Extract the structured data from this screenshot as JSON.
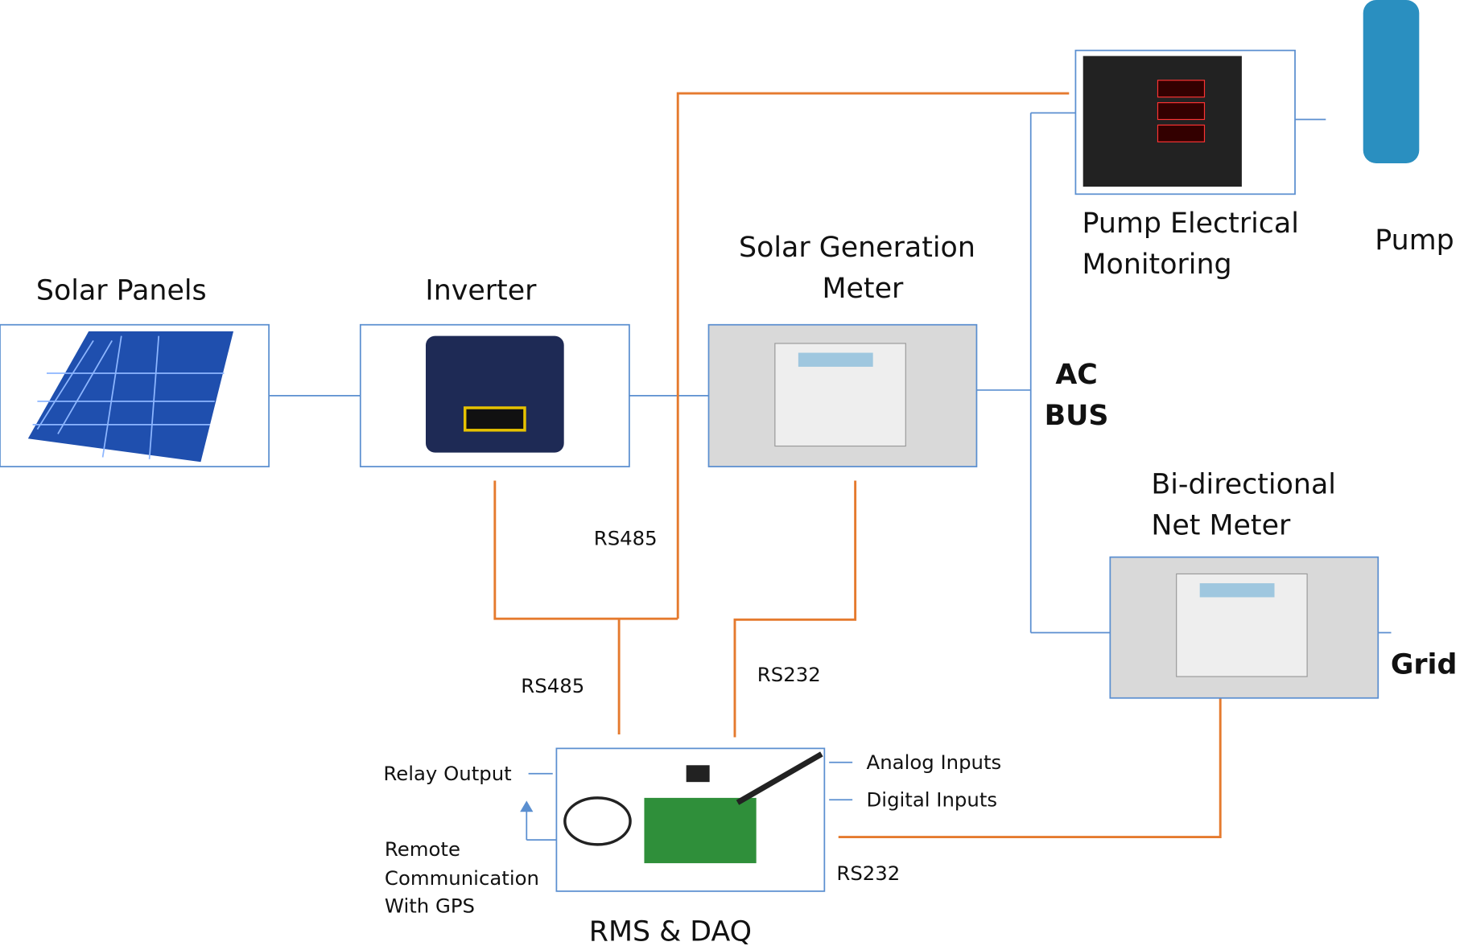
{
  "nodes": [
    {
      "label": [
        "Solar Panels"
      ]
    },
    {
      "label": [
        "Inverter"
      ]
    },
    {
      "label": [
        "Solar Generation",
        "Meter"
      ]
    },
    {
      "label": [
        "Pump Electrical",
        "Monitoring"
      ]
    },
    {
      "label": [
        "Pump"
      ]
    },
    {
      "label": [
        "AC",
        "BUS"
      ]
    },
    {
      "label": [
        "Bi-directional",
        "Net Meter"
      ]
    },
    {
      "label": [
        "Grid"
      ]
    },
    {
      "label": [
        "RMS & DAQ"
      ]
    }
  ],
  "links": [
    {
      "label": "RS485"
    },
    {
      "label": "RS485"
    },
    {
      "label": "RS232"
    },
    {
      "label": "RS232"
    }
  ],
  "rms_io": [
    "Relay Output",
    "Analog Inputs",
    "Digital Inputs",
    "Remote",
    "Communication",
    "With GPS"
  ]
}
